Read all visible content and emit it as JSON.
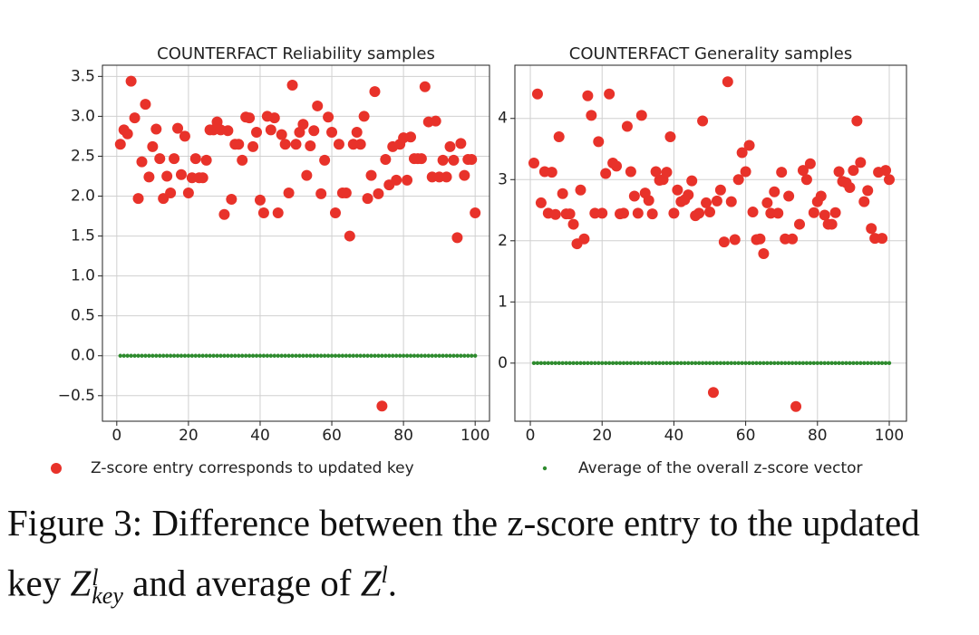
{
  "chart_data": [
    {
      "type": "scatter",
      "title": "COUNTERFACT Reliability samples",
      "x": [
        1,
        2,
        3,
        4,
        5,
        6,
        7,
        8,
        9,
        10,
        11,
        12,
        13,
        14,
        15,
        16,
        17,
        18,
        19,
        20,
        21,
        22,
        23,
        24,
        25,
        26,
        27,
        28,
        29,
        30,
        31,
        32,
        33,
        34,
        35,
        36,
        37,
        38,
        39,
        40,
        41,
        42,
        43,
        44,
        45,
        46,
        47,
        48,
        49,
        50,
        51,
        52,
        53,
        54,
        55,
        56,
        57,
        58,
        59,
        60,
        61,
        62,
        63,
        64,
        65,
        66,
        67,
        68,
        69,
        70,
        71,
        72,
        73,
        74,
        75,
        76,
        77,
        78,
        79,
        80,
        81,
        82,
        83,
        84,
        85,
        86,
        87,
        88,
        89,
        90,
        91,
        92,
        93,
        94,
        95,
        96,
        97,
        98,
        99,
        100
      ],
      "series": [
        {
          "name": "Z-score entry corresponds to updated key",
          "color": "#e8322a",
          "values": [
            2.65,
            2.83,
            2.78,
            3.44,
            2.98,
            1.97,
            2.43,
            3.15,
            2.24,
            2.62,
            2.84,
            2.47,
            1.97,
            2.25,
            2.04,
            2.47,
            2.85,
            2.27,
            2.75,
            2.04,
            2.23,
            2.47,
            2.23,
            2.23,
            2.45,
            2.83,
            2.83,
            2.93,
            2.83,
            1.77,
            2.82,
            1.96,
            2.65,
            2.65,
            2.45,
            2.99,
            2.98,
            2.62,
            2.8,
            1.95,
            1.79,
            3.0,
            2.83,
            2.98,
            1.79,
            2.77,
            2.65,
            2.04,
            3.39,
            2.65,
            2.8,
            2.9,
            2.26,
            2.63,
            2.82,
            3.13,
            2.03,
            2.45,
            2.99,
            2.8,
            1.79,
            2.65,
            2.04,
            2.04,
            1.5,
            2.65,
            2.8,
            2.65,
            3.0,
            1.97,
            2.26,
            3.31,
            2.03,
            -0.63,
            2.46,
            2.14,
            2.62,
            2.2,
            2.65,
            2.73,
            2.2,
            2.74,
            2.47,
            2.47,
            2.47,
            3.37,
            2.93,
            2.24,
            2.94,
            2.24,
            2.45,
            2.24,
            2.62,
            2.45,
            1.48,
            2.66,
            2.26,
            2.46,
            2.46,
            1.79
          ]
        },
        {
          "name": "Average of the overall z-score vector",
          "color": "#2e8b2e",
          "values": [
            0,
            0,
            0,
            0,
            0,
            0,
            0,
            0,
            0,
            0,
            0,
            0,
            0,
            0,
            0,
            0,
            0,
            0,
            0,
            0,
            0,
            0,
            0,
            0,
            0,
            0,
            0,
            0,
            0,
            0,
            0,
            0,
            0,
            0,
            0,
            0,
            0,
            0,
            0,
            0,
            0,
            0,
            0,
            0,
            0,
            0,
            0,
            0,
            0,
            0,
            0,
            0,
            0,
            0,
            0,
            0,
            0,
            0,
            0,
            0,
            0,
            0,
            0,
            0,
            0,
            0,
            0,
            0,
            0,
            0,
            0,
            0,
            0,
            0,
            0,
            0,
            0,
            0,
            0,
            0,
            0,
            0,
            0,
            0,
            0,
            0,
            0,
            0,
            0,
            0,
            0,
            0,
            0,
            0,
            0,
            0,
            0,
            0,
            0,
            0
          ]
        }
      ],
      "xlim": [
        -4,
        104
      ],
      "xticks": [
        0,
        20,
        40,
        60,
        80,
        100
      ],
      "ylim": [
        -0.82,
        3.64
      ],
      "yticks": [
        {
          "value": -0.5,
          "label": "−0.5"
        },
        {
          "value": 0,
          "label": "0.0"
        },
        0.5,
        {
          "value": 1,
          "label": "1.0"
        },
        1.5,
        {
          "value": 2,
          "label": "2.0"
        },
        2.5,
        {
          "value": 3,
          "label": "3.0"
        },
        3.5
      ],
      "grid": true
    },
    {
      "type": "scatter",
      "title": "COUNTERFACT Generality samples",
      "x": [
        1,
        2,
        3,
        4,
        5,
        6,
        7,
        8,
        9,
        10,
        11,
        12,
        13,
        14,
        15,
        16,
        17,
        18,
        19,
        20,
        21,
        22,
        23,
        24,
        25,
        26,
        27,
        28,
        29,
        30,
        31,
        32,
        33,
        34,
        35,
        36,
        37,
        38,
        39,
        40,
        41,
        42,
        43,
        44,
        45,
        46,
        47,
        48,
        49,
        50,
        51,
        52,
        53,
        54,
        55,
        56,
        57,
        58,
        59,
        60,
        61,
        62,
        63,
        64,
        65,
        66,
        67,
        68,
        69,
        70,
        71,
        72,
        73,
        74,
        75,
        76,
        77,
        78,
        79,
        80,
        81,
        82,
        83,
        84,
        85,
        86,
        87,
        88,
        89,
        90,
        91,
        92,
        93,
        94,
        95,
        96,
        97,
        98,
        99,
        100
      ],
      "series": [
        {
          "color": "#e8322a",
          "values": [
            3.27,
            4.4,
            2.62,
            3.13,
            2.45,
            3.12,
            2.43,
            3.7,
            2.77,
            2.44,
            2.44,
            2.27,
            1.95,
            2.83,
            2.03,
            4.37,
            4.05,
            2.45,
            3.62,
            2.45,
            3.1,
            4.4,
            3.27,
            3.22,
            2.44,
            2.45,
            3.87,
            3.13,
            2.73,
            2.45,
            4.05,
            2.78,
            2.66,
            2.44,
            3.13,
            2.99,
            3.0,
            3.12,
            3.7,
            2.45,
            2.83,
            2.64,
            2.67,
            2.75,
            2.98,
            2.41,
            2.45,
            3.96,
            2.62,
            2.47,
            -0.48,
            2.65,
            2.83,
            1.98,
            4.6,
            2.64,
            2.02,
            3.0,
            3.44,
            3.13,
            3.56,
            2.47,
            2.02,
            2.03,
            1.79,
            2.62,
            2.45,
            2.8,
            2.45,
            3.12,
            2.03,
            2.73,
            2.03,
            -0.71,
            2.27,
            3.15,
            3.0,
            3.26,
            2.46,
            2.64,
            2.73,
            2.42,
            2.27,
            2.27,
            2.46,
            3.13,
            2.97,
            2.95,
            2.87,
            3.15,
            3.96,
            3.28,
            2.64,
            2.82,
            2.2,
            2.04,
            3.12,
            2.04,
            3.15,
            3.0
          ]
        },
        {
          "color": "#2e8b2e",
          "values": [
            0,
            0,
            0,
            0,
            0,
            0,
            0,
            0,
            0,
            0,
            0,
            0,
            0,
            0,
            0,
            0,
            0,
            0,
            0,
            0,
            0,
            0,
            0,
            0,
            0,
            0,
            0,
            0,
            0,
            0,
            0,
            0,
            0,
            0,
            0,
            0,
            0,
            0,
            0,
            0,
            0,
            0,
            0,
            0,
            0,
            0,
            0,
            0,
            0,
            0,
            0,
            0,
            0,
            0,
            0,
            0,
            0,
            0,
            0,
            0,
            0,
            0,
            0,
            0,
            0,
            0,
            0,
            0,
            0,
            0,
            0,
            0,
            0,
            0,
            0,
            0,
            0,
            0,
            0,
            0,
            0,
            0,
            0,
            0,
            0,
            0,
            0,
            0,
            0,
            0,
            0,
            0,
            0,
            0,
            0,
            0,
            0,
            0,
            0,
            0
          ]
        }
      ],
      "xlim": [
        -4.3,
        104.8
      ],
      "xticks": [
        0,
        20,
        40,
        60,
        80,
        100
      ],
      "ylim": [
        -0.95,
        4.87
      ],
      "yticks": [
        0,
        1,
        2,
        3,
        4
      ],
      "grid": true
    }
  ],
  "caption": {
    "label": "Figure 3:",
    "text": "Difference between the z-score entry to the updated key",
    "math1": {
      "base": "Z",
      "sup": "l",
      "sub": "key"
    },
    "text2": "and average of",
    "math2": {
      "base": "Z",
      "sup": "l"
    },
    "end": "."
  }
}
